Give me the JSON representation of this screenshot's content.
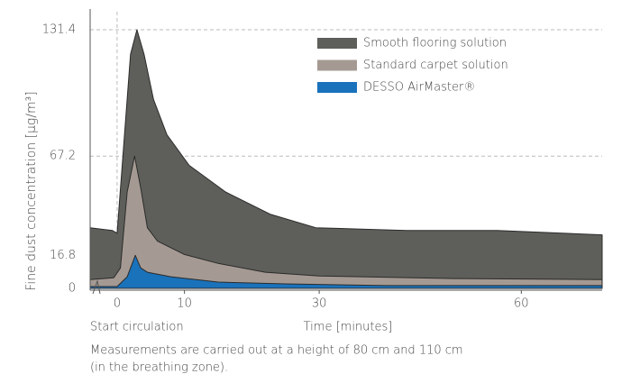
{
  "chart_data": {
    "type": "area",
    "y_label": "Fine dust concentration [µg/m³]",
    "x_label": "Time [minutes]",
    "x_annotation": "Start circulation",
    "footnote": [
      "Measurements are carried out at a height of 80 cm and 110 cm",
      "(in the breathing zone)."
    ],
    "xlim": [
      -4,
      72
    ],
    "xticks": [
      0,
      10,
      30,
      60
    ],
    "ylim": [
      0,
      131.4
    ],
    "yticks": [
      0,
      16.8,
      67.2,
      131.4
    ],
    "grid": true,
    "legend": "top-right",
    "series": [
      {
        "name": "Smooth flooring solution",
        "color": "#5e5f5a",
        "x": [
          -4,
          -0.7,
          0,
          1.1,
          2,
          2.95,
          4,
          5.4,
          7.4,
          10.7,
          16.1,
          22.8,
          29.5,
          43,
          56.4,
          72
        ],
        "values": [
          30.8,
          29.4,
          28,
          78,
          119,
          131.4,
          119,
          96,
          78,
          62.5,
          49,
          37.6,
          30.8,
          29.4,
          29.4,
          27.2
        ]
      },
      {
        "name": "Standard carpet solution",
        "color": "#a59a93",
        "x": [
          -4,
          -0.5,
          0.5,
          1.5,
          2.6,
          3.5,
          4.5,
          6,
          10,
          15,
          22,
          30,
          50,
          72
        ],
        "values": [
          4.5,
          5.4,
          10.4,
          49,
          67.2,
          51,
          30.8,
          24,
          17.2,
          12.7,
          8.2,
          6.3,
          5,
          4.5
        ]
      },
      {
        "name": "DESSO AirMaster®",
        "color": "#1a72bb",
        "x": [
          -4,
          0,
          1.5,
          2.7,
          3.5,
          4.5,
          8,
          15,
          25,
          40,
          72
        ],
        "values": [
          0.9,
          0.9,
          5.9,
          16.8,
          10.4,
          8.2,
          5.9,
          3.2,
          2.3,
          1.4,
          1.4
        ]
      }
    ]
  }
}
